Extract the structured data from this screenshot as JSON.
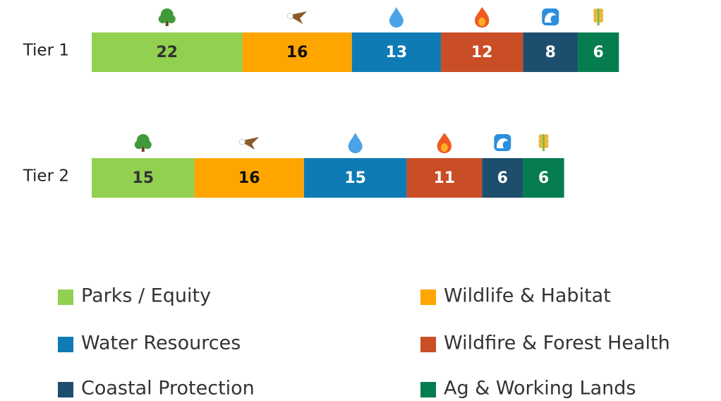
{
  "chart_data": {
    "type": "bar",
    "orientation": "horizontal",
    "stacked": true,
    "categories": [
      "Tier 1",
      "Tier 2"
    ],
    "series": [
      {
        "name": "Parks / Equity",
        "color": "#92d050",
        "label_color": "#333333",
        "values": [
          22,
          15
        ]
      },
      {
        "name": "Wildlife & Habitat",
        "color": "#ffa500",
        "label_color": "#111111",
        "values": [
          16,
          16
        ]
      },
      {
        "name": "Water Resources",
        "color": "#0e7bb5",
        "label_color": "#ffffff",
        "values": [
          13,
          15
        ]
      },
      {
        "name": "Wildfire & Forest Health",
        "color": "#c94e26",
        "label_color": "#ffffff",
        "values": [
          12,
          11
        ]
      },
      {
        "name": "Coastal Protection",
        "color": "#1e4e6e",
        "label_color": "#ffffff",
        "values": [
          8,
          6
        ]
      },
      {
        "name": "Ag & Working Lands",
        "color": "#067d4f",
        "label_color": "#ffffff",
        "values": [
          6,
          6
        ]
      }
    ],
    "legend": "bottom"
  }
}
